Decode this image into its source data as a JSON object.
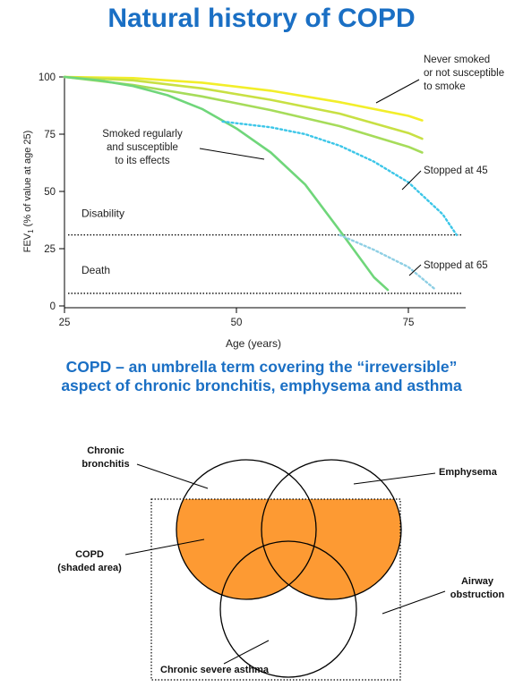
{
  "title": "Natural history of COPD",
  "subtitle_lines": [
    "COPD – an umbrella term covering the “irreversible”",
    "aspect of chronic bronchitis, emphysema and asthma"
  ],
  "chart_data": {
    "type": "line",
    "xlabel": "Age (years)",
    "ylabel_main": "FEV",
    "ylabel_sub": "1",
    "ylabel_rest": " (% of value at age 25)",
    "x_ticks": [
      "25",
      "50",
      "75"
    ],
    "y_ticks": [
      "0",
      "25",
      "50",
      "75",
      "100"
    ],
    "xlim": [
      25,
      82
    ],
    "ylim": [
      0,
      100
    ],
    "thresholds": [
      {
        "label": "Disability",
        "y": 31
      },
      {
        "label": "Death",
        "y": 5.5
      }
    ],
    "series": [
      {
        "name": "Never smoked or not susceptible to smoke",
        "color": "#f2ee2a",
        "style": "solid",
        "x": [
          25,
          35,
          45,
          55,
          65,
          75,
          77
        ],
        "y": [
          100,
          99.5,
          97.5,
          94,
          89,
          83,
          81
        ]
      },
      {
        "name": "",
        "color": "#c8e043",
        "style": "solid",
        "x": [
          25,
          35,
          45,
          55,
          65,
          75,
          77
        ],
        "y": [
          100,
          98.5,
          95,
          90,
          84,
          75.5,
          73
        ]
      },
      {
        "name": "",
        "color": "#a6dc5a",
        "style": "solid",
        "x": [
          25,
          35,
          45,
          55,
          65,
          75,
          77
        ],
        "y": [
          100,
          96.5,
          91.5,
          85.5,
          78.5,
          69.5,
          67
        ]
      },
      {
        "name": "Smoked regularly and susceptible to its effects",
        "color": "#6fd67a",
        "style": "solid",
        "x": [
          25,
          30,
          35,
          40,
          45,
          50,
          55,
          60,
          65,
          70,
          72
        ],
        "y": [
          100,
          98.5,
          96,
          92,
          86,
          77.5,
          67,
          53,
          33,
          12.5,
          7
        ]
      },
      {
        "name": "Stopped at 45",
        "color": "#3cc6e8",
        "style": "dotted",
        "x": [
          48,
          55,
          60,
          65,
          70,
          75,
          80,
          82
        ],
        "y": [
          80.5,
          78,
          75,
          70,
          63,
          54,
          40,
          31
        ]
      },
      {
        "name": "Stopped at 65",
        "color": "#8ecfe4",
        "style": "dotted",
        "x": [
          65,
          70,
          75,
          79
        ],
        "y": [
          31,
          24.5,
          17,
          7
        ]
      }
    ],
    "annotations": [
      {
        "lines": [
          "Never smoked",
          "or not susceptible",
          "to smoke"
        ]
      },
      {
        "lines": [
          "Smoked regularly",
          "and susceptible",
          "to its effects"
        ]
      },
      {
        "lines": [
          "Stopped at 45"
        ]
      },
      {
        "lines": [
          "Stopped at 65"
        ]
      }
    ]
  },
  "venn": {
    "shade_color": "#fd9a33",
    "labels": {
      "chronic_bronchitis": [
        "Chronic",
        "bronchitis"
      ],
      "emphysema": [
        "Emphysema"
      ],
      "copd": [
        "COPD",
        "(shaded area)"
      ],
      "airway_obstruction": [
        "Airway",
        "obstruction"
      ],
      "chronic_severe_asthma": [
        "Chronic severe asthma"
      ]
    }
  }
}
